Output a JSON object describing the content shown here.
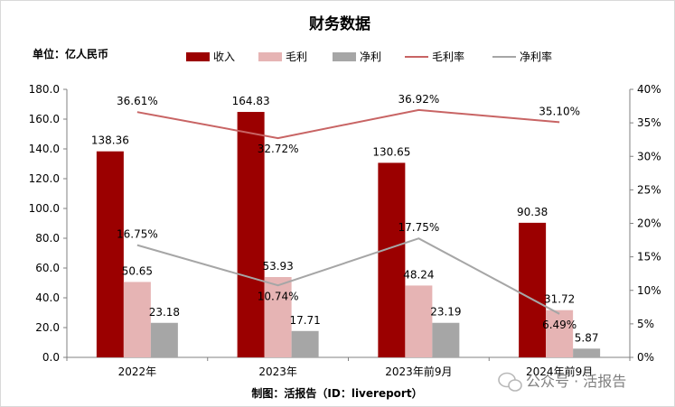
{
  "chart_data": {
    "type": "bar",
    "title": "财务数据",
    "unit_label": "单位：亿人民币",
    "categories": [
      "2022年",
      "2023年",
      "2023年前9月",
      "2024年前9月"
    ],
    "series": [
      {
        "name": "收入",
        "kind": "bar",
        "axis": "left",
        "color": "#9b0000",
        "values": [
          138.36,
          164.83,
          130.65,
          90.38
        ],
        "labels": [
          "138.36",
          "164.83",
          "130.65",
          "90.38"
        ]
      },
      {
        "name": "毛利",
        "kind": "bar",
        "axis": "left",
        "color": "#e6b4b4",
        "values": [
          50.65,
          53.93,
          48.24,
          31.72
        ],
        "labels": [
          "50.65",
          "53.93",
          "48.24",
          "31.72"
        ]
      },
      {
        "name": "净利",
        "kind": "bar",
        "axis": "left",
        "color": "#a6a6a6",
        "values": [
          23.18,
          17.71,
          23.19,
          5.87
        ],
        "labels": [
          "23.18",
          "17.71",
          "23.19",
          "5.87"
        ]
      },
      {
        "name": "毛利率",
        "kind": "line",
        "axis": "right",
        "color": "#c86464",
        "values": [
          36.61,
          32.72,
          36.92,
          35.1
        ],
        "labels": [
          "36.61%",
          "32.72%",
          "36.92%",
          "35.10%"
        ]
      },
      {
        "name": "净利率",
        "kind": "line",
        "axis": "right",
        "color": "#a6a6a6",
        "values": [
          16.75,
          10.74,
          17.75,
          6.49
        ],
        "labels": [
          "16.75%",
          "10.74%",
          "17.75%",
          "6.49%"
        ]
      }
    ],
    "y_left": {
      "min": 0,
      "max": 180,
      "step": 20,
      "ticks": [
        "0.0",
        "20.0",
        "40.0",
        "60.0",
        "80.0",
        "100.0",
        "120.0",
        "140.0",
        "160.0",
        "180.0"
      ]
    },
    "y_right": {
      "min": 0,
      "max": 40,
      "step": 5,
      "ticks": [
        "0%",
        "5%",
        "10%",
        "15%",
        "20%",
        "25%",
        "30%",
        "35%",
        "40%"
      ]
    },
    "legend_position": "top",
    "grid": false
  },
  "footer": {
    "credit": "制图：活报告（ID：livereport）",
    "watermark": "公众号 · 活报告"
  }
}
